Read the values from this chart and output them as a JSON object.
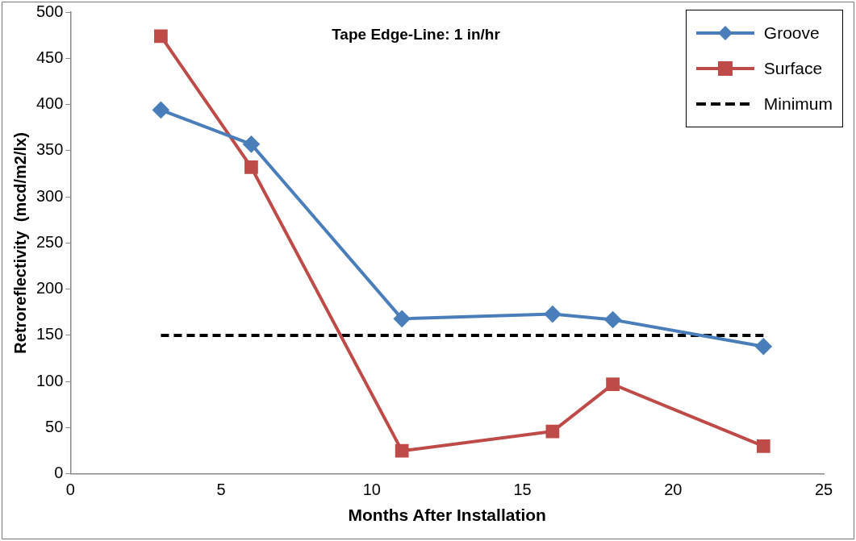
{
  "chart_data": {
    "type": "line",
    "title": "Tape Edge-Line: 1 in/hr",
    "xlabel": "Months After Installation",
    "ylabel": "Retroreflectivity  (mcd/m2/lx)",
    "x": [
      3,
      6,
      11,
      16,
      18,
      23
    ],
    "series": [
      {
        "name": "Groove",
        "color": "#4a7ebb",
        "marker": "diamond",
        "values": [
          394,
          357,
          168,
          173,
          167,
          138
        ]
      },
      {
        "name": "Surface",
        "color": "#be4b48",
        "marker": "square",
        "values": [
          474,
          332,
          25,
          46,
          97,
          30
        ]
      },
      {
        "name": "Minimum",
        "color": "#000000",
        "marker": "none",
        "line_style": "dashed",
        "x": [
          3,
          23
        ],
        "values": [
          150,
          150
        ]
      }
    ],
    "xlim": [
      0,
      25
    ],
    "xticks": [
      0,
      5,
      10,
      15,
      20,
      25
    ],
    "ylim": [
      0,
      500
    ],
    "yticks": [
      0,
      50,
      100,
      150,
      200,
      250,
      300,
      350,
      400,
      450,
      500
    ],
    "grid": false,
    "legend": "top right"
  }
}
